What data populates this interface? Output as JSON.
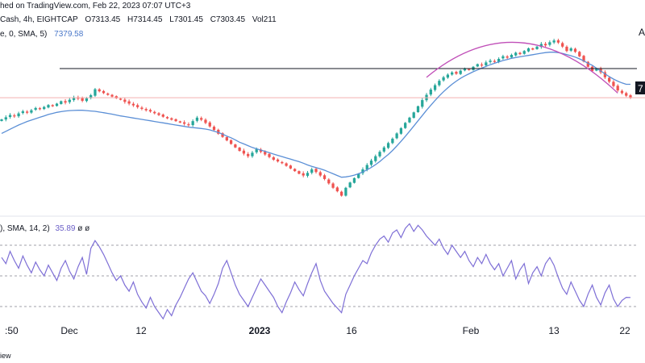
{
  "header": {
    "line1": "hed on TradingView.com, Feb 22, 2023 07:07 UTC+3",
    "line2_symbol": " Cash, 4h, EIGHTCAP",
    "open": "O7313.45",
    "high": "H7314.45",
    "low": "L7301.45",
    "close": "C7303.45",
    "vol": "Vol211",
    "line3_label": "e, 0, SMA, 5)",
    "sma_value": "7379.58"
  },
  "rsi_label": {
    "text": "), SMA, 14, 2)",
    "value": "35.89",
    "extra": "ø  ø"
  },
  "right_edge_labels": {
    "top_letter": "A",
    "price_tag": "7"
  },
  "footer": "iew",
  "colors": {
    "up": "#26a69a",
    "down": "#ef5350",
    "sma": "#5b8fd6",
    "arc": "#c04fb8",
    "rsi": "#7e6fd6",
    "resistance": "#131722",
    "price_line": "#f4b0b0"
  },
  "chart_data": {
    "type": "candlestick",
    "interval": "4h",
    "x_tick_labels": [
      ":50",
      "Dec",
      "12",
      "2023",
      "16",
      "Feb",
      "13",
      "22"
    ],
    "annotations": [
      "horizontal resistance line",
      "rounded-top arc",
      "SMA overlay",
      "RSI panel with dashed bands"
    ],
    "close": [
      7180,
      7192,
      7205,
      7198,
      7214,
      7226,
      7218,
      7232,
      7245,
      7238,
      7251,
      7262,
      7255,
      7270,
      7284,
      7276,
      7292,
      7305,
      7298,
      7286,
      7300,
      7318,
      7352,
      7340,
      7330,
      7320,
      7310,
      7300,
      7292,
      7280,
      7270,
      7260,
      7250,
      7240,
      7232,
      7225,
      7215,
      7205,
      7195,
      7186,
      7178,
      7170,
      7162,
      7155,
      7148,
      7170,
      7190,
      7178,
      7160,
      7140,
      7120,
      7098,
      7080,
      7060,
      7040,
      7020,
      7000,
      6985,
      6970,
      6990,
      7010,
      6995,
      6980,
      6965,
      6950,
      6940,
      6930,
      6915,
      6900,
      6885,
      6870,
      6860,
      6875,
      6895,
      6880,
      6860,
      6840,
      6815,
      6790,
      6770,
      6745,
      6790,
      6820,
      6845,
      6870,
      6895,
      6920,
      6945,
      6970,
      6995,
      7020,
      7045,
      7070,
      7100,
      7130,
      7160,
      7190,
      7220,
      7255,
      7290,
      7320,
      7350,
      7375,
      7400,
      7420,
      7435,
      7448,
      7440,
      7458,
      7470,
      7462,
      7480,
      7495,
      7488,
      7505,
      7515,
      7508,
      7525,
      7540,
      7532,
      7548,
      7560,
      7552,
      7570,
      7585,
      7578,
      7595,
      7610,
      7602,
      7620,
      7630,
      7618,
      7595,
      7570,
      7585,
      7565,
      7540,
      7510,
      7480,
      7455,
      7470,
      7448,
      7420,
      7395,
      7370,
      7345,
      7330,
      7315,
      7303
    ],
    "sma": [
      7100,
      7112,
      7124,
      7136,
      7148,
      7158,
      7168,
      7176,
      7184,
      7192,
      7200,
      7208,
      7214,
      7220,
      7224,
      7228,
      7230,
      7231,
      7232,
      7232,
      7230,
      7228,
      7226,
      7222,
      7218,
      7214,
      7210,
      7205,
      7200,
      7196,
      7192,
      7188,
      7184,
      7180,
      7176,
      7172,
      7168,
      7164,
      7160,
      7156,
      7152,
      7148,
      7144,
      7140,
      7136,
      7133,
      7131,
      7128,
      7125,
      7120,
      7113,
      7105,
      7096,
      7085,
      7075,
      7063,
      7050,
      7040,
      7030,
      7020,
      7012,
      7005,
      6998,
      6990,
      6982,
      6975,
      6968,
      6960,
      6953,
      6946,
      6939,
      6930,
      6920,
      6912,
      6905,
      6898,
      6890,
      6880,
      6870,
      6860,
      6850,
      6852,
      6856,
      6862,
      6870,
      6880,
      6892,
      6906,
      6922,
      6940,
      6960,
      6980,
      7003,
      7028,
      7055,
      7083,
      7112,
      7142,
      7172,
      7202,
      7232,
      7260,
      7288,
      7314,
      7338,
      7360,
      7380,
      7398,
      7414,
      7428,
      7440,
      7452,
      7462,
      7472,
      7482,
      7492,
      7500,
      7508,
      7516,
      7522,
      7528,
      7533,
      7537,
      7541,
      7545,
      7549,
      7553,
      7557,
      7561,
      7563,
      7563,
      7561,
      7556,
      7550,
      7543,
      7535,
      7525,
      7514,
      7500,
      7488,
      7472,
      7456,
      7440,
      7424,
      7410,
      7398,
      7388,
      7380,
      7380
    ],
    "rsi": [
      62,
      58,
      66,
      60,
      55,
      63,
      57,
      52,
      59,
      54,
      50,
      57,
      52,
      47,
      55,
      60,
      53,
      48,
      56,
      62,
      51,
      68,
      73,
      69,
      64,
      58,
      52,
      47,
      50,
      44,
      40,
      46,
      38,
      33,
      29,
      36,
      30,
      26,
      22,
      28,
      24,
      31,
      36,
      42,
      48,
      52,
      46,
      40,
      37,
      32,
      38,
      45,
      55,
      60,
      52,
      44,
      38,
      34,
      30,
      36,
      42,
      48,
      44,
      40,
      36,
      30,
      26,
      33,
      39,
      46,
      41,
      37,
      45,
      52,
      58,
      47,
      40,
      36,
      32,
      29,
      26,
      38,
      44,
      50,
      55,
      60,
      58,
      65,
      70,
      74,
      76,
      72,
      78,
      80,
      75,
      81,
      84,
      79,
      83,
      80,
      76,
      73,
      70,
      74,
      68,
      64,
      70,
      66,
      62,
      66,
      60,
      56,
      62,
      58,
      64,
      58,
      54,
      58,
      50,
      55,
      60,
      48,
      54,
      58,
      45,
      52,
      56,
      50,
      58,
      62,
      57,
      49,
      42,
      38,
      46,
      40,
      34,
      30,
      38,
      44,
      36,
      31,
      39,
      44,
      35,
      30,
      34,
      36,
      35.89
    ],
    "resistance_price": 7470,
    "price_line": 7303.45,
    "rsi_levels": [
      70,
      50,
      30
    ],
    "rsi_length": 14,
    "rsi_sma_length": 2,
    "rsi_last": 35.89
  }
}
